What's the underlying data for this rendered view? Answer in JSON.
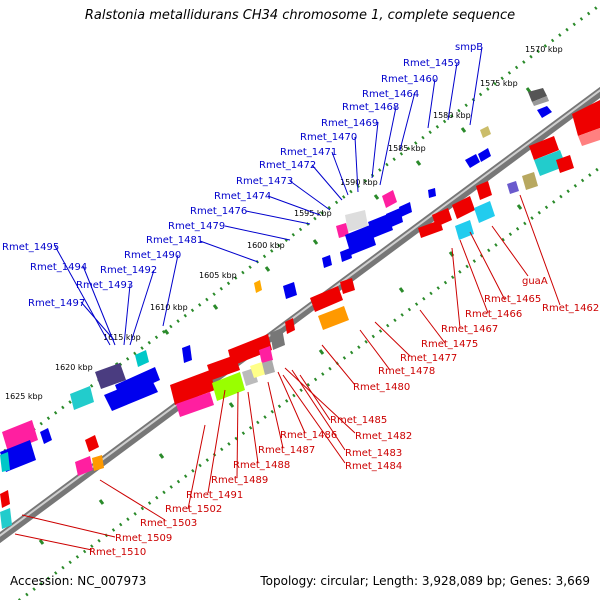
{
  "title": "Ralstonia metallidurans CH34 chromosome 1, complete sequence",
  "footer": {
    "accession": "Accession: NC_007973",
    "topology": "Topology: circular; Length: 3,928,089 bp; Genes: 3,669"
  },
  "colors": {
    "forward": "#0000ee",
    "reverse": "#ee0000",
    "backbone": "#888888",
    "tick": "#228b22",
    "upper_label": "#0000cc",
    "lower_label": "#cc0000"
  },
  "ticks": [
    {
      "label": "1570 kbp"
    },
    {
      "label": "1575 kbp"
    },
    {
      "label": "1580 kbp"
    },
    {
      "label": "1585 kbp"
    },
    {
      "label": "1590 kbp"
    },
    {
      "label": "1595 kbp"
    },
    {
      "label": "1600 kbp"
    },
    {
      "label": "1605 kbp"
    },
    {
      "label": "1610 kbp"
    },
    {
      "label": "1615 kbp"
    },
    {
      "label": "1620 kbp"
    },
    {
      "label": "1625 kbp"
    }
  ],
  "upper_genes": [
    {
      "label": "smpB"
    },
    {
      "label": "Rmet_1459"
    },
    {
      "label": "Rmet_1460"
    },
    {
      "label": "Rmet_1464"
    },
    {
      "label": "Rmet_1468"
    },
    {
      "label": "Rmet_1469"
    },
    {
      "label": "Rmet_1470"
    },
    {
      "label": "Rmet_1471"
    },
    {
      "label": "Rmet_1472"
    },
    {
      "label": "Rmet_1473"
    },
    {
      "label": "Rmet_1474"
    },
    {
      "label": "Rmet_1476"
    },
    {
      "label": "Rmet_1479"
    },
    {
      "label": "Rmet_1481"
    },
    {
      "label": "Rmet_1490"
    },
    {
      "label": "Rmet_1492"
    },
    {
      "label": "Rmet_1493"
    },
    {
      "label": "Rmet_1494"
    },
    {
      "label": "Rmet_1495"
    },
    {
      "label": "Rmet_1497"
    }
  ],
  "lower_genes": [
    {
      "label": "guaA"
    },
    {
      "label": "Rmet_1462"
    },
    {
      "label": "Rmet_1465"
    },
    {
      "label": "Rmet_1466"
    },
    {
      "label": "Rmet_1467"
    },
    {
      "label": "Rmet_1475"
    },
    {
      "label": "Rmet_1477"
    },
    {
      "label": "Rmet_1478"
    },
    {
      "label": "Rmet_1480"
    },
    {
      "label": "Rmet_1485"
    },
    {
      "label": "Rmet_1482"
    },
    {
      "label": "Rmet_1486"
    },
    {
      "label": "Rmet_1487"
    },
    {
      "label": "Rmet_1483"
    },
    {
      "label": "Rmet_1484"
    },
    {
      "label": "Rmet_1488"
    },
    {
      "label": "Rmet_1489"
    },
    {
      "label": "Rmet_1491"
    },
    {
      "label": "Rmet_1502"
    },
    {
      "label": "Rmet_1503"
    },
    {
      "label": "Rmet_1509"
    },
    {
      "label": "Rmet_1510"
    }
  ]
}
